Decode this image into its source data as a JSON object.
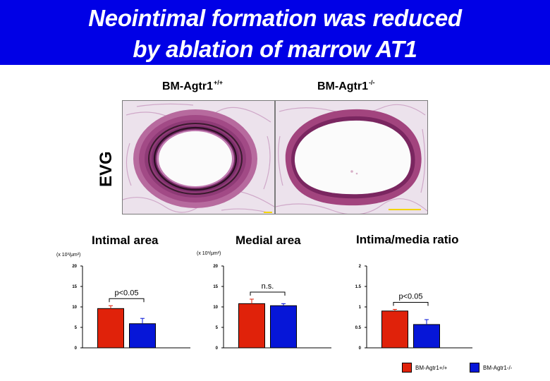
{
  "title": {
    "line1": "Neointimal formation was reduced",
    "line2": "by ablation of marrow AT1"
  },
  "groups": [
    {
      "base": "BM-Agtr1",
      "sup": "+/+"
    },
    {
      "base": "BM-Agtr1",
      "sup": "-/-"
    }
  ],
  "stain_label": "EVG",
  "colors": {
    "title_bg": "#0000e6",
    "wild_type": "#e0220a",
    "knockout": "#0616d8"
  },
  "legend": [
    {
      "label": "BM-Agtr1+/+",
      "color": "#e0220a"
    },
    {
      "label": "BM-Agtr1-/-",
      "color": "#0616d8"
    }
  ],
  "chart_data": [
    {
      "type": "bar",
      "title": "Intimal area",
      "unit": "(x 10³/μm²)",
      "categories": [
        "BM-Agtr1+/+",
        "BM-Agtr1-/-"
      ],
      "values": [
        9.6,
        5.9
      ],
      "errors": [
        0.7,
        1.3
      ],
      "ylim": [
        0,
        20
      ],
      "yticks": [
        0,
        5,
        10,
        15,
        20
      ],
      "yticklabels": [
        "0",
        "5",
        "10",
        "15",
        "20"
      ],
      "annotation": "p<0.05"
    },
    {
      "type": "bar",
      "title": "Medial area",
      "unit": "(x 10³/μm²)",
      "categories": [
        "BM-Agtr1+/+",
        "BM-Agtr1-/-"
      ],
      "values": [
        10.8,
        10.3
      ],
      "errors": [
        1.1,
        0.5
      ],
      "ylim": [
        0,
        20
      ],
      "yticks": [
        0,
        5,
        10,
        15,
        20
      ],
      "yticklabels": [
        "0",
        "5",
        "10",
        "15",
        "20"
      ],
      "annotation": "n.s."
    },
    {
      "type": "bar",
      "title": "Intima/media ratio",
      "unit": "",
      "categories": [
        "BM-Agtr1+/+",
        "BM-Agtr1-/-"
      ],
      "values": [
        0.9,
        0.57
      ],
      "errors": [
        0.04,
        0.12
      ],
      "ylim": [
        0,
        2
      ],
      "yticks": [
        0,
        0.5,
        1,
        1.5,
        2
      ],
      "yticklabels": [
        "0",
        "0.5",
        "1",
        "1.5",
        "2"
      ],
      "annotation": "p<0.05"
    }
  ]
}
